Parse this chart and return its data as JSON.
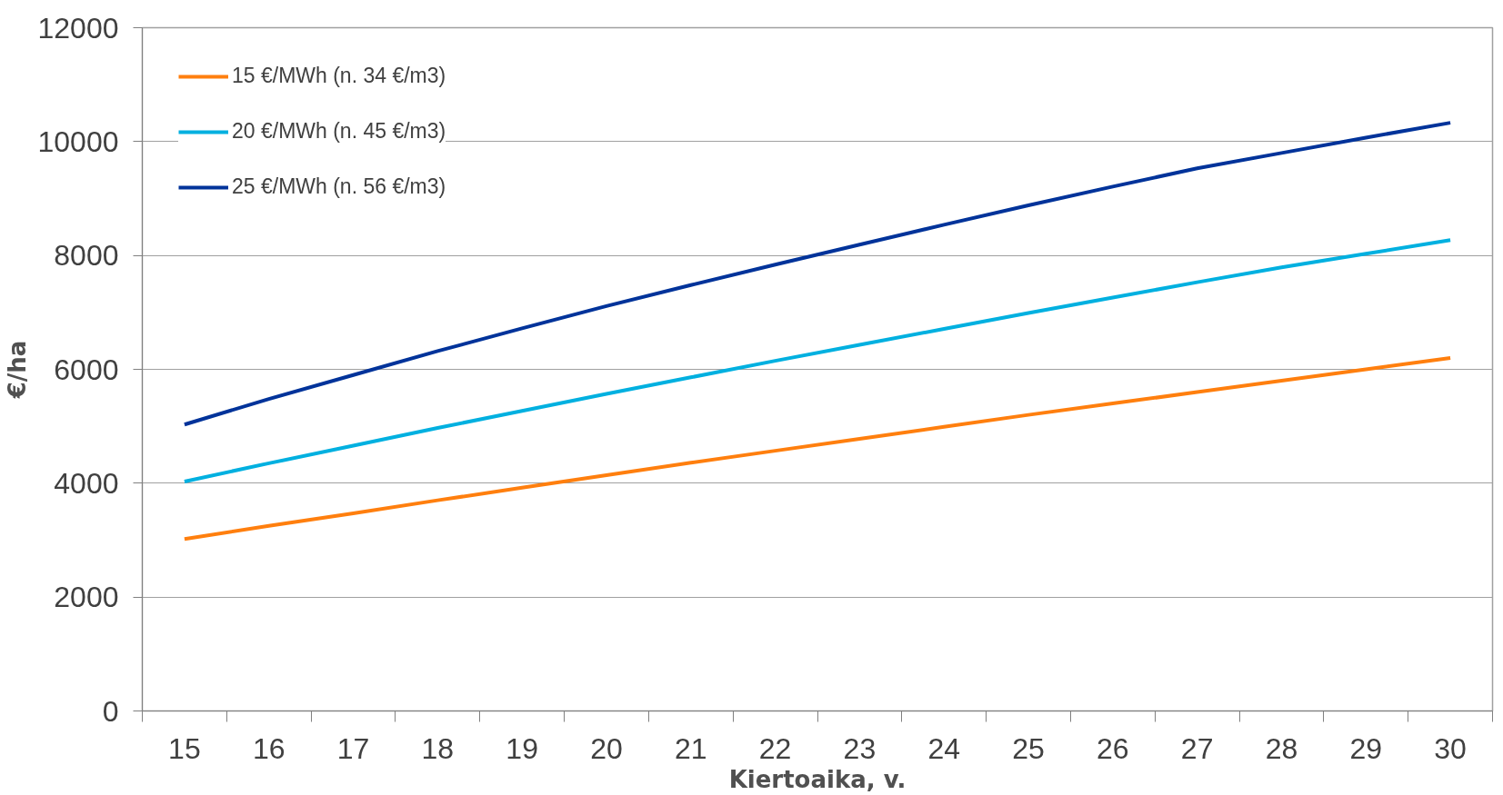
{
  "chart_data": {
    "type": "line",
    "xlabel": "Kiertoaika, v.",
    "ylabel": "€/ha",
    "categories": [
      "15",
      "16",
      "17",
      "18",
      "19",
      "20",
      "21",
      "22",
      "23",
      "24",
      "25",
      "26",
      "27",
      "28",
      "29",
      "30"
    ],
    "ylim": [
      0,
      12000
    ],
    "yticks": [
      0,
      2000,
      4000,
      6000,
      8000,
      10000,
      12000
    ],
    "grid": "y",
    "legend": "top left",
    "marker": "none",
    "line_style": "solid",
    "series": [
      {
        "name": "15 €/MWh (n. 34 €/m3)",
        "color": "#ff7f0e",
        "values": [
          3020,
          3250,
          3470,
          3700,
          3920,
          4140,
          4360,
          4570,
          4780,
          4990,
          5200,
          5400,
          5600,
          5800,
          6000,
          6200
        ]
      },
      {
        "name": "20 €/MWh (n. 45 €/m3)",
        "color": "#00b0e0",
        "values": [
          4030,
          4350,
          4660,
          4970,
          5270,
          5570,
          5860,
          6150,
          6430,
          6710,
          6990,
          7260,
          7530,
          7790,
          8030,
          8270
        ]
      },
      {
        "name": "25 €/MWh (n. 56 €/m3)",
        "color": "#00339a",
        "values": [
          5030,
          5480,
          5900,
          6320,
          6720,
          7110,
          7480,
          7840,
          8190,
          8540,
          8880,
          9210,
          9530,
          9800,
          10070,
          10330
        ]
      }
    ]
  }
}
